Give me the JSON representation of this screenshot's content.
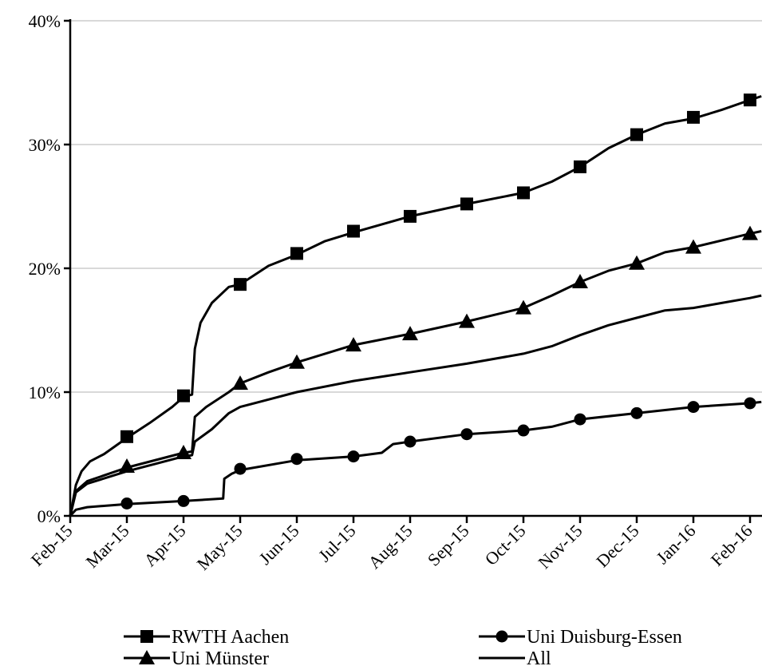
{
  "chart_data": {
    "type": "line",
    "title": "",
    "xlabel": "",
    "ylabel": "",
    "x_tick_labels": [
      "Feb-15",
      "Mar-15",
      "Apr-15",
      "May-15",
      "Jun-15",
      "Jul-15",
      "Aug-15",
      "Sep-15",
      "Oct-15",
      "Nov-15",
      "Dec-15",
      "Jan-16",
      "Feb-16"
    ],
    "y_tick_labels": [
      "0%",
      "10%",
      "20%",
      "30%",
      "40%"
    ],
    "ylim": [
      0,
      40
    ],
    "y_unit": "%",
    "grid": "horizontal",
    "legend_position": "bottom",
    "series": [
      {
        "name": "RWTH Aachen",
        "marker": "square",
        "points": [
          [
            0,
            0
          ],
          [
            0.1,
            2.5
          ],
          [
            0.2,
            3.6
          ],
          [
            0.35,
            4.4
          ],
          [
            0.6,
            5.0
          ],
          [
            1.0,
            6.3
          ],
          [
            1.4,
            7.5
          ],
          [
            1.8,
            8.8
          ],
          [
            2.0,
            9.6
          ],
          [
            2.15,
            9.8
          ],
          [
            2.2,
            13.5
          ],
          [
            2.3,
            15.6
          ],
          [
            2.5,
            17.2
          ],
          [
            2.8,
            18.5
          ],
          [
            3.0,
            18.7
          ],
          [
            3.5,
            20.2
          ],
          [
            4.0,
            21.1
          ],
          [
            4.5,
            22.2
          ],
          [
            5.0,
            22.9
          ],
          [
            6.0,
            24.2
          ],
          [
            7.0,
            25.2
          ],
          [
            8.0,
            26.1
          ],
          [
            8.5,
            27.0
          ],
          [
            9.0,
            28.2
          ],
          [
            9.5,
            29.7
          ],
          [
            10.0,
            30.8
          ],
          [
            10.5,
            31.7
          ],
          [
            11.0,
            32.1
          ],
          [
            11.5,
            32.8
          ],
          [
            12.0,
            33.6
          ],
          [
            12.2,
            33.9
          ]
        ]
      },
      {
        "name": "Uni Duisburg-Essen",
        "marker": "circle",
        "points": [
          [
            0,
            0
          ],
          [
            0.1,
            0.5
          ],
          [
            0.3,
            0.7
          ],
          [
            1.0,
            0.95
          ],
          [
            2.0,
            1.2
          ],
          [
            2.7,
            1.4
          ],
          [
            2.72,
            3.0
          ],
          [
            2.85,
            3.4
          ],
          [
            3.0,
            3.7
          ],
          [
            4.0,
            4.5
          ],
          [
            5.0,
            4.8
          ],
          [
            5.5,
            5.1
          ],
          [
            5.7,
            5.8
          ],
          [
            6.0,
            6.0
          ],
          [
            7.0,
            6.6
          ],
          [
            8.0,
            6.9
          ],
          [
            8.5,
            7.2
          ],
          [
            9.0,
            7.8
          ],
          [
            10.0,
            8.3
          ],
          [
            11.0,
            8.8
          ],
          [
            12.0,
            9.1
          ],
          [
            12.2,
            9.2
          ]
        ]
      },
      {
        "name": "Uni Münster",
        "marker": "triangle",
        "points": [
          [
            0,
            0
          ],
          [
            0.1,
            2.0
          ],
          [
            0.3,
            2.8
          ],
          [
            1.0,
            3.9
          ],
          [
            2.0,
            5.1
          ],
          [
            2.15,
            5.2
          ],
          [
            2.2,
            8.0
          ],
          [
            2.4,
            8.8
          ],
          [
            2.8,
            10.0
          ],
          [
            3.0,
            10.7
          ],
          [
            3.5,
            11.6
          ],
          [
            4.0,
            12.4
          ],
          [
            5.0,
            13.8
          ],
          [
            6.0,
            14.7
          ],
          [
            7.0,
            15.7
          ],
          [
            8.0,
            16.8
          ],
          [
            8.5,
            17.8
          ],
          [
            9.0,
            18.9
          ],
          [
            9.5,
            19.8
          ],
          [
            10.0,
            20.4
          ],
          [
            10.5,
            21.3
          ],
          [
            11.0,
            21.7
          ],
          [
            12.0,
            22.8
          ],
          [
            12.2,
            23.0
          ]
        ]
      },
      {
        "name": "All",
        "marker": "none",
        "points": [
          [
            0,
            0
          ],
          [
            0.1,
            1.9
          ],
          [
            0.3,
            2.6
          ],
          [
            1.0,
            3.6
          ],
          [
            1.5,
            4.2
          ],
          [
            2.0,
            4.8
          ],
          [
            2.15,
            4.9
          ],
          [
            2.2,
            6.0
          ],
          [
            2.5,
            7.0
          ],
          [
            2.8,
            8.3
          ],
          [
            3.0,
            8.8
          ],
          [
            3.5,
            9.4
          ],
          [
            4.0,
            10.0
          ],
          [
            5.0,
            10.9
          ],
          [
            6.0,
            11.6
          ],
          [
            7.0,
            12.3
          ],
          [
            8.0,
            13.1
          ],
          [
            8.5,
            13.7
          ],
          [
            9.0,
            14.6
          ],
          [
            9.5,
            15.4
          ],
          [
            10.0,
            16.0
          ],
          [
            10.5,
            16.6
          ],
          [
            11.0,
            16.8
          ],
          [
            11.5,
            17.2
          ],
          [
            12.0,
            17.6
          ],
          [
            12.2,
            17.8
          ]
        ]
      }
    ],
    "marker_positions": {
      "RWTH Aachen": [
        [
          1,
          6.4
        ],
        [
          2,
          9.7
        ],
        [
          3,
          18.7
        ],
        [
          4,
          21.2
        ],
        [
          5,
          23.0
        ],
        [
          6,
          24.2
        ],
        [
          7,
          25.2
        ],
        [
          8,
          26.1
        ],
        [
          9,
          28.2
        ],
        [
          10,
          30.8
        ],
        [
          11,
          32.2
        ],
        [
          12,
          33.6
        ]
      ],
      "Uni Duisburg-Essen": [
        [
          1,
          1.0
        ],
        [
          2,
          1.2
        ],
        [
          3,
          3.8
        ],
        [
          4,
          4.6
        ],
        [
          5,
          4.8
        ],
        [
          6,
          6.0
        ],
        [
          7,
          6.6
        ],
        [
          8,
          6.9
        ],
        [
          9,
          7.8
        ],
        [
          10,
          8.3
        ],
        [
          11,
          8.8
        ],
        [
          12,
          9.1
        ]
      ],
      "Uni Münster": [
        [
          1,
          4.0
        ],
        [
          2,
          5.1
        ],
        [
          3,
          10.7
        ],
        [
          4,
          12.4
        ],
        [
          5,
          13.8
        ],
        [
          6,
          14.7
        ],
        [
          7,
          15.7
        ],
        [
          8,
          16.8
        ],
        [
          9,
          18.9
        ],
        [
          10,
          20.4
        ],
        [
          11,
          21.7
        ],
        [
          12,
          22.8
        ]
      ]
    },
    "legend": [
      {
        "label": "RWTH Aachen",
        "marker": "square"
      },
      {
        "label": "Uni Duisburg-Essen",
        "marker": "circle"
      },
      {
        "label": "Uni Münster",
        "marker": "triangle"
      },
      {
        "label": "All",
        "marker": "none"
      }
    ]
  }
}
